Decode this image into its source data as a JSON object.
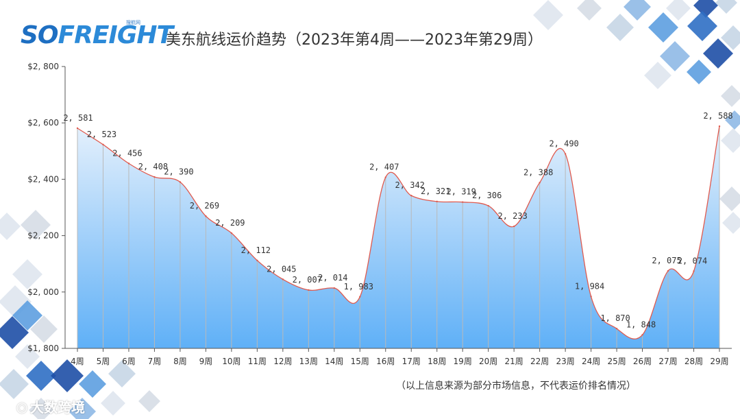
{
  "logo": {
    "main_a": "SO",
    "main_b": "FREIGHT",
    "sub": "搜航网"
  },
  "watermark": {
    "icon": "⦿",
    "text": "大数跨境"
  },
  "colors": {
    "line": "#e05a4e",
    "fill_top": "#e4f0fc",
    "fill_bottom": "#5fb0f7",
    "drop": "#b9b9b9"
  },
  "chart_data": {
    "type": "area",
    "title": "美东航线运价趋势（2023年第4周——2023年第29周）",
    "note": "（以上信息来源为部分市场信息，不代表运价排名情况）",
    "categories": [
      "4周",
      "5周",
      "6周",
      "7周",
      "8周",
      "9周",
      "10周",
      "11周",
      "12周",
      "13周",
      "14周",
      "15周",
      "16周",
      "17周",
      "18周",
      "19周",
      "20周",
      "21周",
      "22周",
      "23周",
      "24周",
      "25周",
      "26周",
      "27周",
      "28周",
      "29周"
    ],
    "values": [
      2581,
      2523,
      2456,
      2408,
      2390,
      2269,
      2209,
      2112,
      2045,
      2007,
      2014,
      1983,
      2407,
      2342,
      2321,
      2319,
      2306,
      2233,
      2388,
      2490,
      1984,
      1870,
      1848,
      2075,
      2074,
      2588
    ],
    "data_labels": [
      "2, 581",
      "2, 523",
      "2, 456",
      "2, 408",
      "2, 390",
      "2, 269",
      "2, 209",
      "2, 112",
      "2, 045",
      "2, 007",
      "2, 014",
      "1, 983",
      "2, 407",
      "2, 342",
      "2, 321",
      "2, 319",
      "2, 306",
      "2, 233",
      "2, 388",
      "2, 490",
      "1, 984",
      "1, 870",
      "1, 848",
      "2, 075",
      "2, 074",
      "2, 588"
    ],
    "ylim": [
      1800,
      2800
    ],
    "y_ticks": [
      1800,
      2000,
      2200,
      2400,
      2600,
      2800
    ],
    "y_tick_labels": [
      "$1, 800",
      "$2, 000",
      "$2, 200",
      "$2, 400",
      "$2, 600",
      "$2, 800"
    ],
    "xlabel": "",
    "ylabel": "",
    "grid": false,
    "legend": "none"
  }
}
